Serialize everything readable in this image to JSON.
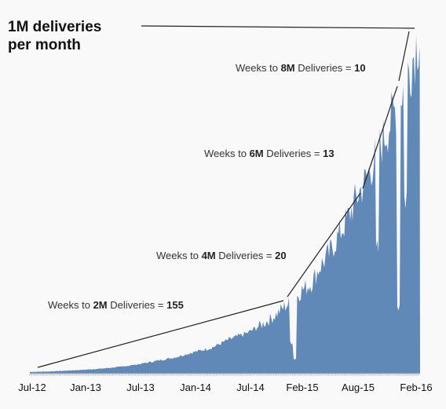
{
  "chart_data": {
    "type": "area",
    "title_lines": [
      "1M deliveries",
      "per month"
    ],
    "x_tick_labels": [
      "Jul-12",
      "Jan-13",
      "Jul-13",
      "Jan-14",
      "Jul-14",
      "Feb-15",
      "Aug-15",
      "Feb-16"
    ],
    "x_range": [
      "2012-07",
      "2016-02"
    ],
    "y_range_millions_per_month": [
      0,
      8
    ],
    "series_color": "#6189b8",
    "grid": false,
    "legend": "none",
    "series": [
      {
        "x": [
          "2012-07",
          "2012-09",
          "2012-11",
          "2013-01",
          "2013-03",
          "2013-05",
          "2013-07",
          "2013-09",
          "2013-11",
          "2014-01",
          "2014-03",
          "2014-05",
          "2014-07",
          "2014-09",
          "2014-10",
          "2014-11",
          "2014-12",
          "2015-01",
          "2015-02",
          "2015-03",
          "2015-04",
          "2015-05",
          "2015-06",
          "2015-07",
          "2015-08",
          "2015-09",
          "2015-10",
          "2015-11",
          "2015-12",
          "2016-01",
          "2016-02"
        ],
        "values": [
          0.04,
          0.05,
          0.07,
          0.09,
          0.12,
          0.16,
          0.22,
          0.3,
          0.38,
          0.5,
          0.6,
          0.8,
          0.95,
          1.2,
          1.35,
          1.55,
          1.7,
          1.95,
          2.1,
          2.5,
          2.8,
          3.2,
          3.6,
          4.1,
          4.5,
          5.0,
          5.5,
          6.0,
          6.6,
          7.2,
          8.0
        ]
      }
    ],
    "annotations": [
      {
        "pre": "Weeks to ",
        "bold": "2M",
        "post": " Deliveries = ",
        "value": "155"
      },
      {
        "pre": "Weeks to ",
        "bold": "4M",
        "post": " Deliveries = ",
        "value": "20"
      },
      {
        "pre": "Weeks to ",
        "bold": "6M",
        "post": " Deliveries = ",
        "value": "13"
      },
      {
        "pre": "Weeks to ",
        "bold": "8M",
        "post": " Deliveries = ",
        "value": "10"
      }
    ]
  }
}
